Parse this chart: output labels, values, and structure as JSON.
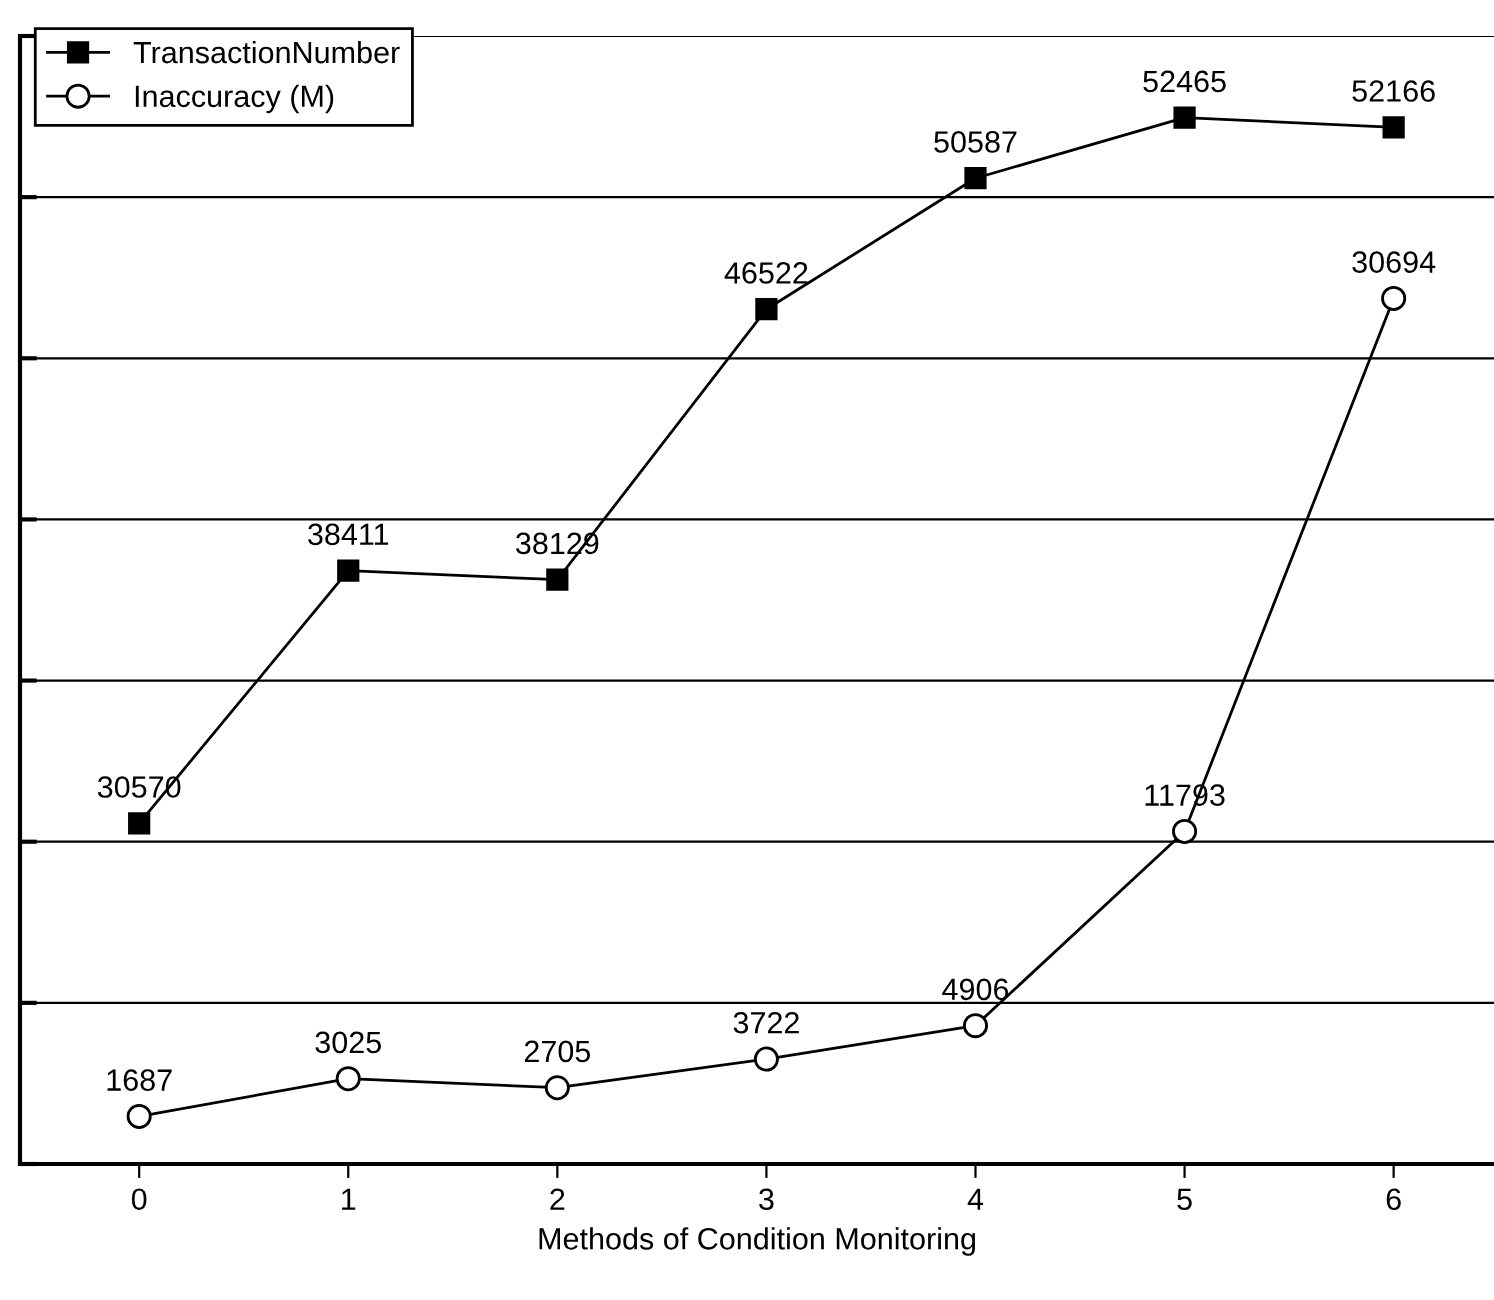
{
  "chart_data": {
    "type": "line",
    "xlabel": "Methods of Condition Monitoring",
    "categories": [
      "0",
      "1",
      "2",
      "3",
      "4",
      "5",
      "6"
    ],
    "series": [
      {
        "name": "TransactionNumber",
        "color": "#000000",
        "marker": "square",
        "values": [
          30570,
          38411,
          38129,
          46522,
          50587,
          52465,
          52166
        ]
      },
      {
        "name": "Inaccuracy (M)",
        "color": "#000000",
        "marker": "circle",
        "axis": "y2",
        "values": [
          1687,
          3025,
          2705,
          3722,
          4906,
          11793,
          30694
        ]
      }
    ],
    "ylim": [
      20000,
      55000
    ],
    "yticks": [
      {
        "value": 20000,
        "label": null
      },
      {
        "value": 25000,
        "label": null
      },
      {
        "value": 30000,
        "label": null
      },
      {
        "value": 35000,
        "label": null
      },
      {
        "value": 40000,
        "label": null
      },
      {
        "value": 45000,
        "label": null
      },
      {
        "value": 50000,
        "label": null
      },
      {
        "value": 55000,
        "label": null
      }
    ],
    "y2lim": [
      0,
      40000
    ],
    "tick_labels": "x",
    "grid": "y",
    "legend": "top left",
    "data_labels": true,
    "line_style": "solid"
  }
}
